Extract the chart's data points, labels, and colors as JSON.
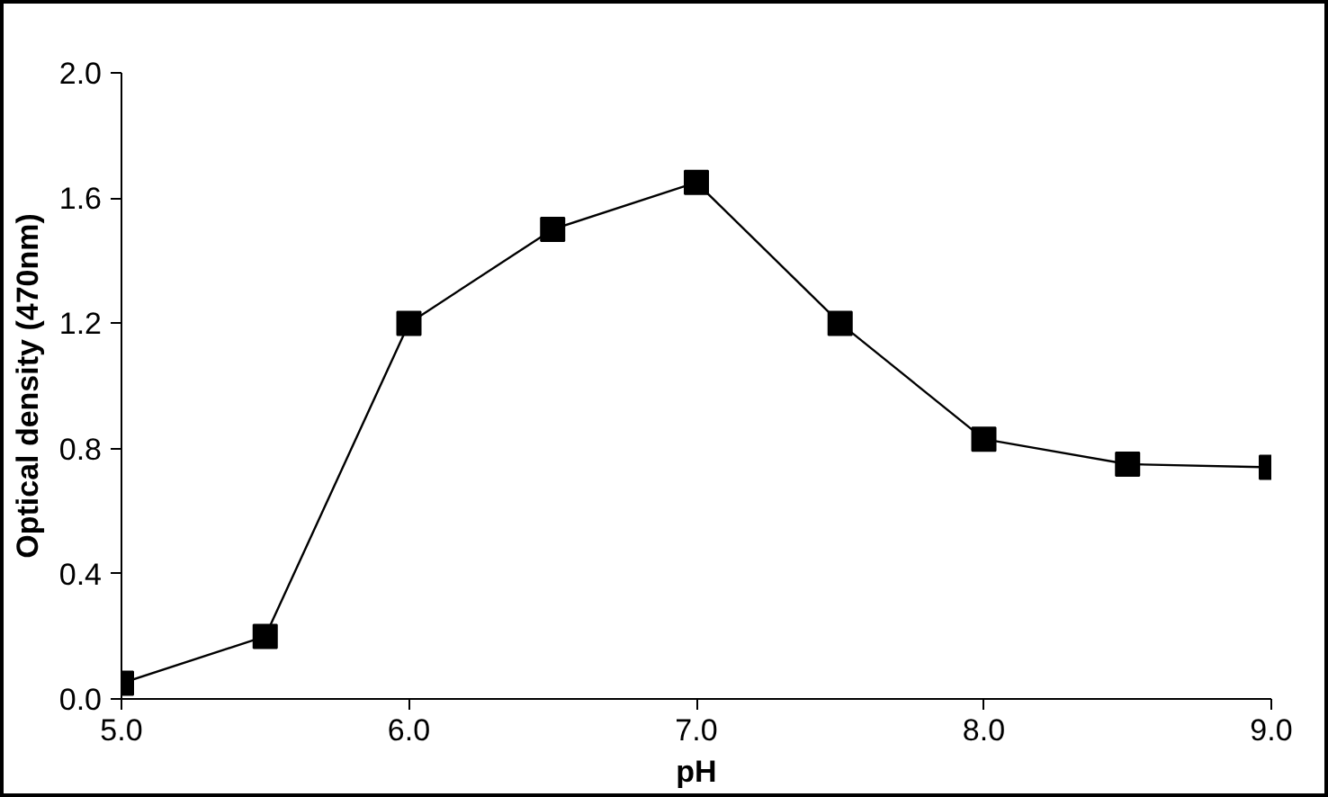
{
  "chart_data": {
    "type": "line",
    "xlabel": "pH",
    "ylabel": "Optical density (470nm)",
    "x": [
      5.0,
      5.5,
      6.0,
      6.5,
      7.0,
      7.5,
      8.0,
      8.5,
      9.0
    ],
    "series": [
      {
        "color": "#000000",
        "values": [
          0.05,
          0.2,
          1.2,
          1.5,
          1.65,
          1.2,
          0.83,
          0.75,
          0.74
        ]
      }
    ],
    "xlim": [
      5.0,
      9.0
    ],
    "ylim": [
      0.0,
      2.0
    ],
    "xticks": [
      {
        "value": 5.0,
        "label": "5.0"
      },
      {
        "value": 6.0,
        "label": "6.0"
      },
      {
        "value": 7.0,
        "label": "7.0"
      },
      {
        "value": 8.0,
        "label": "8.0"
      },
      {
        "value": 9.0,
        "label": "9.0"
      }
    ],
    "yticks": [
      {
        "value": 0.0,
        "label": "0.0"
      },
      {
        "value": 0.4,
        "label": "0.4"
      },
      {
        "value": 0.8,
        "label": "0.8"
      },
      {
        "value": 1.2,
        "label": "1.2"
      },
      {
        "value": 1.6,
        "label": "1.6"
      },
      {
        "value": 2.0,
        "label": "2.0"
      }
    ],
    "grid": false,
    "marker": "square",
    "line_style": "solid"
  }
}
